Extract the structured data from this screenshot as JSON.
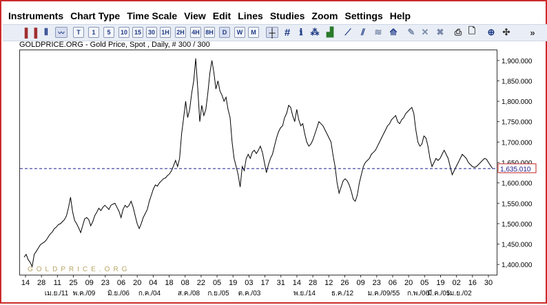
{
  "menu": [
    "Instruments",
    "Chart Type",
    "Time Scale",
    "View",
    "Edit",
    "Lines",
    "Studies",
    "Zoom",
    "Settings",
    "Help"
  ],
  "toolbar": {
    "timescale_buttons": [
      "T",
      "1",
      "5",
      "10",
      "15",
      "30",
      "1H",
      "2H",
      "4H",
      "8H",
      "D",
      "W",
      "M"
    ],
    "selected_timescale": "D",
    "icons": [
      "candlestick-chart-icon",
      "bar-chart-icon",
      "line-chart-icon",
      "crosshair-icon",
      "grid-icon",
      "info-icon",
      "statistics-icon",
      "volume-icon",
      "trend-line-icon",
      "parallel-line-icon",
      "fibonacci-icon",
      "channel-icon",
      "pencil-icon",
      "delete-icon",
      "delete-all-icon",
      "print-icon",
      "print-preview-icon",
      "zoom-icon",
      "pin-icon",
      "expand-icon"
    ]
  },
  "chart_title": "GOLDPRICE.ORG - Gold Price, Spot , Daily, # 300 / 300",
  "watermark": "GOLDPRICE.ORG",
  "chart_data": {
    "type": "line",
    "title": "GOLDPRICE.ORG - Gold Price, Spot , Daily, # 300 / 300",
    "ylim": [
      1375,
      1925
    ],
    "y_ticks": [
      1400,
      1450,
      1500,
      1550,
      1600,
      1650,
      1700,
      1750,
      1800,
      1850,
      1900
    ],
    "y_tick_labels": [
      "1,400.000",
      "1,450.000",
      "1,500.000",
      "1,550.000",
      "1,600.000",
      "1,650.000",
      "1,700.000",
      "1,750.000",
      "1,800.000",
      "1,850.000",
      "1,900.000"
    ],
    "x_tick_labels": [
      "14",
      "28",
      "11",
      "25",
      "09",
      "23",
      "06",
      "20",
      "04",
      "18",
      "08",
      "22",
      "05",
      "19",
      "03",
      "17",
      "31",
      "14",
      "28",
      "12",
      "26",
      "09",
      "23",
      "06",
      "20",
      "05",
      "19",
      "02",
      "16",
      "30"
    ],
    "month_labels": [
      "เม.ย./11",
      "พ.ค./09",
      "มิ.ย./06",
      "ก.ค./04",
      "ส.ค./08",
      "ก.ย./05",
      "ต.ค./03",
      "พ.ย./14",
      "ธ.ค./12",
      "ม.ค./09/55",
      "ก.พ./06",
      "มี.ค./05",
      "เม.ย./02"
    ],
    "current_price": 1635.01,
    "current_price_label": "1,635.010",
    "grid": false,
    "series": [
      {
        "values": [
          1418,
          1425,
          1412,
          1405,
          1395,
          1425,
          1432,
          1440,
          1448,
          1452,
          1455,
          1460,
          1468,
          1475,
          1480,
          1488,
          1492,
          1498,
          1500,
          1505,
          1510,
          1520,
          1540,
          1565,
          1530,
          1508,
          1500,
          1490,
          1478,
          1495,
          1512,
          1515,
          1510,
          1495,
          1505,
          1520,
          1528,
          1538,
          1532,
          1540,
          1545,
          1540,
          1535,
          1545,
          1548,
          1550,
          1540,
          1530,
          1515,
          1535,
          1545,
          1540,
          1545,
          1555,
          1540,
          1520,
          1500,
          1488,
          1500,
          1515,
          1525,
          1535,
          1555,
          1570,
          1585,
          1595,
          1592,
          1600,
          1605,
          1610,
          1612,
          1618,
          1622,
          1630,
          1642,
          1655,
          1640,
          1660,
          1720,
          1760,
          1800,
          1760,
          1780,
          1820,
          1850,
          1905,
          1830,
          1750,
          1790,
          1765,
          1780,
          1820,
          1870,
          1900,
          1870,
          1830,
          1850,
          1825,
          1815,
          1800,
          1810,
          1780,
          1760,
          1700,
          1660,
          1640,
          1620,
          1590,
          1640,
          1630,
          1660,
          1670,
          1660,
          1675,
          1680,
          1672,
          1680,
          1690,
          1675,
          1650,
          1625,
          1645,
          1660,
          1670,
          1690,
          1710,
          1725,
          1735,
          1740,
          1760,
          1770,
          1790,
          1785,
          1765,
          1750,
          1780,
          1755,
          1740,
          1745,
          1720,
          1700,
          1690,
          1695,
          1705,
          1720,
          1735,
          1750,
          1745,
          1740,
          1730,
          1720,
          1710,
          1700,
          1668,
          1640,
          1600,
          1575,
          1590,
          1605,
          1610,
          1605,
          1595,
          1580,
          1560,
          1555,
          1570,
          1600,
          1620,
          1640,
          1650,
          1655,
          1660,
          1670,
          1675,
          1680,
          1690,
          1700,
          1710,
          1720,
          1730,
          1740,
          1745,
          1755,
          1760,
          1765,
          1750,
          1745,
          1755,
          1760,
          1770,
          1775,
          1780,
          1785,
          1770,
          1730,
          1700,
          1690,
          1695,
          1715,
          1710,
          1690,
          1660,
          1640,
          1650,
          1660,
          1655,
          1660,
          1670,
          1680,
          1670,
          1660,
          1640,
          1620,
          1630,
          1640,
          1650,
          1660,
          1670,
          1665,
          1660,
          1650,
          1645,
          1640,
          1638,
          1640,
          1645,
          1650,
          1655,
          1660,
          1658,
          1650,
          1642,
          1635
        ]
      }
    ]
  }
}
